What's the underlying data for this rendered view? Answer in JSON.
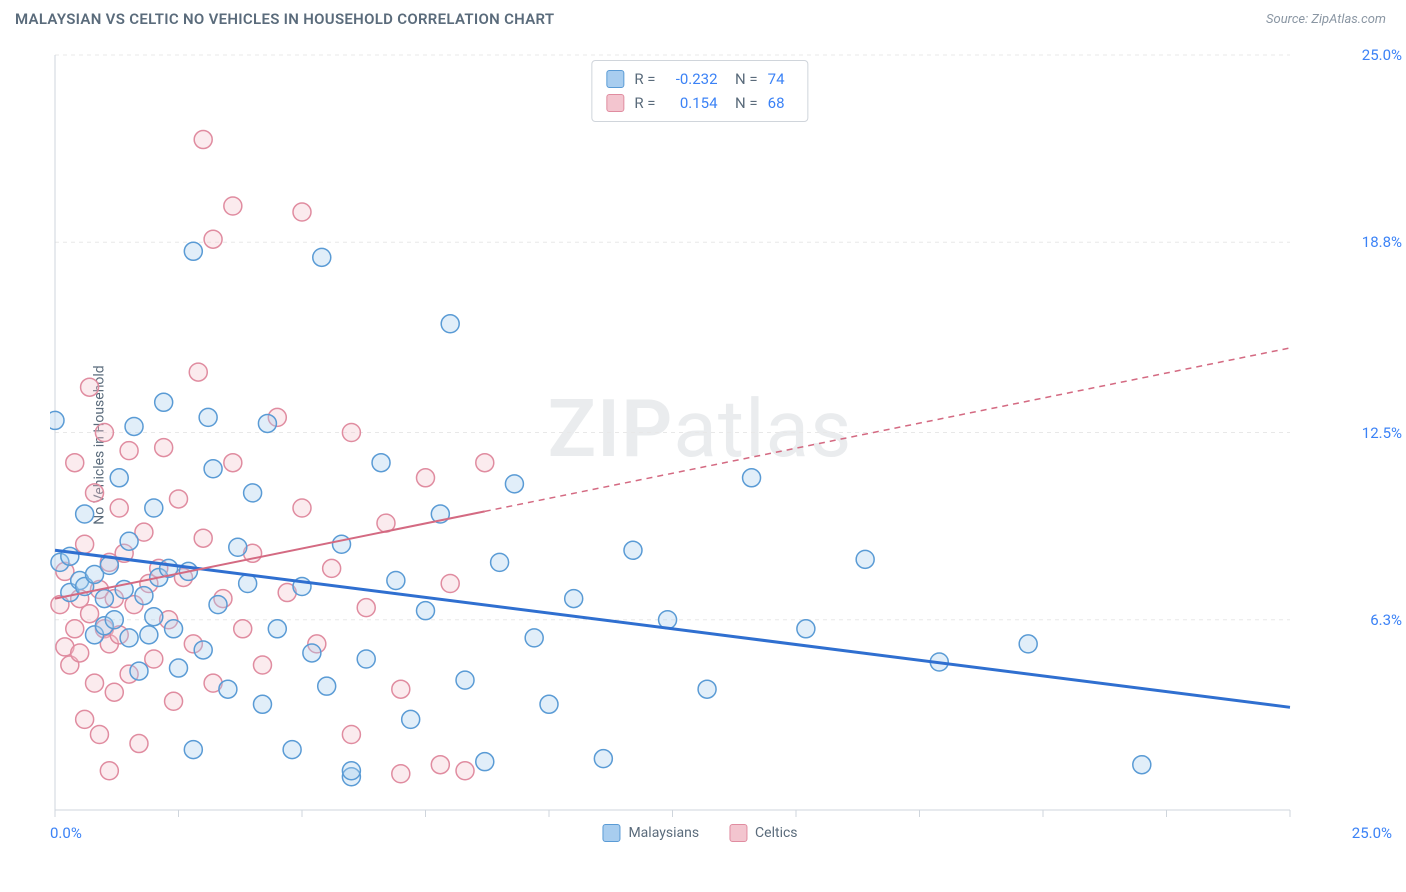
{
  "title": "MALAYSIAN VS CELTIC NO VEHICLES IN HOUSEHOLD CORRELATION CHART",
  "source": "Source: ZipAtlas.com",
  "y_axis_label": "No Vehicles in Household",
  "watermark_bold": "ZIP",
  "watermark_light": "atlas",
  "legend": {
    "series1": "Malaysians",
    "series2": "Celtics"
  },
  "stats": {
    "series1": {
      "R": "-0.232",
      "N": "74"
    },
    "series2": {
      "R": "0.154",
      "N": "68"
    }
  },
  "chart": {
    "type": "scatter",
    "xlim": [
      0,
      25
    ],
    "ylim": [
      0,
      25
    ],
    "x_ticks": [
      0,
      2.5,
      5,
      7.5,
      10,
      12.5,
      15,
      17.5,
      20,
      22.5,
      25
    ],
    "y_ticks": [
      6.3,
      12.5,
      18.8,
      25.0
    ],
    "y_tick_labels": [
      "6.3%",
      "12.5%",
      "18.8%",
      "25.0%"
    ],
    "x_origin_label": "0.0%",
    "x_max_label": "25.0%",
    "grid_color": "#e8e8e8",
    "grid_dash": "4 4",
    "axis_color": "#cfd5dc",
    "background_color": "#ffffff",
    "marker_radius": 9,
    "marker_stroke_width": 1.5,
    "marker_fill_opacity": 0.35,
    "series": [
      {
        "name": "Malaysians",
        "color_stroke": "#5a9bd5",
        "color_fill": "#a8cdef",
        "trend": {
          "y_at_x0": 8.6,
          "y_at_x25": 3.4,
          "width": 3
        },
        "points": [
          [
            0,
            12.9
          ],
          [
            0.1,
            8.2
          ],
          [
            0.3,
            7.2
          ],
          [
            0.3,
            8.4
          ],
          [
            0.5,
            7.6
          ],
          [
            0.6,
            7.4
          ],
          [
            0.6,
            9.8
          ],
          [
            0.8,
            5.8
          ],
          [
            0.8,
            7.8
          ],
          [
            1.0,
            6.1
          ],
          [
            1.0,
            7.0
          ],
          [
            1.1,
            8.1
          ],
          [
            1.2,
            6.3
          ],
          [
            1.3,
            11.0
          ],
          [
            1.4,
            7.3
          ],
          [
            1.5,
            5.7
          ],
          [
            1.5,
            8.9
          ],
          [
            1.6,
            12.7
          ],
          [
            1.7,
            4.6
          ],
          [
            1.8,
            7.1
          ],
          [
            1.9,
            5.8
          ],
          [
            2.0,
            10.0
          ],
          [
            2.0,
            6.4
          ],
          [
            2.1,
            7.7
          ],
          [
            2.2,
            13.5
          ],
          [
            2.3,
            8.0
          ],
          [
            2.4,
            6.0
          ],
          [
            2.5,
            4.7
          ],
          [
            2.7,
            7.9
          ],
          [
            2.8,
            2.0
          ],
          [
            2.8,
            18.5
          ],
          [
            3.0,
            5.3
          ],
          [
            3.1,
            13.0
          ],
          [
            3.2,
            11.3
          ],
          [
            3.3,
            6.8
          ],
          [
            3.5,
            4.0
          ],
          [
            3.7,
            8.7
          ],
          [
            3.9,
            7.5
          ],
          [
            4.0,
            10.5
          ],
          [
            4.2,
            3.5
          ],
          [
            4.3,
            12.8
          ],
          [
            4.5,
            6.0
          ],
          [
            4.8,
            2.0
          ],
          [
            5.0,
            7.4
          ],
          [
            5.2,
            5.2
          ],
          [
            5.4,
            18.3
          ],
          [
            5.5,
            4.1
          ],
          [
            5.8,
            8.8
          ],
          [
            6.0,
            1.1
          ],
          [
            6.0,
            1.3
          ],
          [
            6.3,
            5.0
          ],
          [
            6.6,
            11.5
          ],
          [
            6.9,
            7.6
          ],
          [
            7.2,
            3.0
          ],
          [
            7.5,
            6.6
          ],
          [
            7.8,
            9.8
          ],
          [
            8.0,
            16.1
          ],
          [
            8.3,
            4.3
          ],
          [
            8.7,
            1.6
          ],
          [
            9.0,
            8.2
          ],
          [
            9.3,
            10.8
          ],
          [
            9.7,
            5.7
          ],
          [
            10.0,
            3.5
          ],
          [
            10.5,
            7.0
          ],
          [
            11.1,
            1.7
          ],
          [
            11.7,
            8.6
          ],
          [
            12.4,
            6.3
          ],
          [
            13.2,
            4.0
          ],
          [
            14.1,
            11.0
          ],
          [
            15.2,
            6.0
          ],
          [
            16.4,
            8.3
          ],
          [
            17.9,
            4.9
          ],
          [
            19.7,
            5.5
          ],
          [
            22.0,
            1.5
          ]
        ]
      },
      {
        "name": "Celtics",
        "color_stroke": "#e08ca0",
        "color_fill": "#f3c5cf",
        "trend": {
          "y_at_x0": 7.0,
          "y_at_x25": 15.3,
          "width": 2,
          "solid_until_x": 8.7
        },
        "points": [
          [
            0.1,
            6.8
          ],
          [
            0.2,
            5.4
          ],
          [
            0.2,
            7.9
          ],
          [
            0.3,
            4.8
          ],
          [
            0.4,
            6.0
          ],
          [
            0.4,
            11.5
          ],
          [
            0.5,
            5.2
          ],
          [
            0.5,
            7.0
          ],
          [
            0.6,
            3.0
          ],
          [
            0.6,
            8.8
          ],
          [
            0.7,
            6.5
          ],
          [
            0.7,
            14.0
          ],
          [
            0.8,
            4.2
          ],
          [
            0.8,
            10.5
          ],
          [
            0.9,
            7.3
          ],
          [
            0.9,
            2.5
          ],
          [
            1.0,
            6.0
          ],
          [
            1.0,
            12.5
          ],
          [
            1.1,
            5.5
          ],
          [
            1.1,
            8.2
          ],
          [
            1.2,
            3.9
          ],
          [
            1.2,
            7.0
          ],
          [
            1.3,
            10.0
          ],
          [
            1.3,
            5.8
          ],
          [
            1.4,
            8.5
          ],
          [
            1.5,
            4.5
          ],
          [
            1.5,
            11.9
          ],
          [
            1.6,
            6.8
          ],
          [
            1.7,
            2.2
          ],
          [
            1.8,
            9.2
          ],
          [
            1.9,
            7.5
          ],
          [
            2.0,
            5.0
          ],
          [
            2.1,
            8.0
          ],
          [
            2.2,
            12.0
          ],
          [
            2.3,
            6.3
          ],
          [
            2.4,
            3.6
          ],
          [
            2.5,
            10.3
          ],
          [
            2.6,
            7.7
          ],
          [
            2.8,
            5.5
          ],
          [
            3.0,
            22.2
          ],
          [
            3.0,
            9.0
          ],
          [
            3.2,
            4.2
          ],
          [
            3.4,
            7.0
          ],
          [
            3.6,
            20.0
          ],
          [
            3.6,
            11.5
          ],
          [
            3.8,
            6.0
          ],
          [
            4.0,
            8.5
          ],
          [
            4.2,
            4.8
          ],
          [
            4.5,
            13.0
          ],
          [
            4.7,
            7.2
          ],
          [
            5.0,
            19.8
          ],
          [
            5.0,
            10.0
          ],
          [
            5.3,
            5.5
          ],
          [
            5.6,
            8.0
          ],
          [
            6.0,
            2.5
          ],
          [
            6.0,
            12.5
          ],
          [
            6.3,
            6.7
          ],
          [
            6.7,
            9.5
          ],
          [
            7.0,
            4.0
          ],
          [
            7.0,
            1.2
          ],
          [
            7.5,
            11.0
          ],
          [
            7.8,
            1.5
          ],
          [
            8.0,
            7.5
          ],
          [
            8.3,
            1.3
          ],
          [
            8.7,
            11.5
          ],
          [
            3.2,
            18.9
          ],
          [
            2.9,
            14.5
          ],
          [
            1.1,
            1.3
          ]
        ]
      }
    ]
  }
}
